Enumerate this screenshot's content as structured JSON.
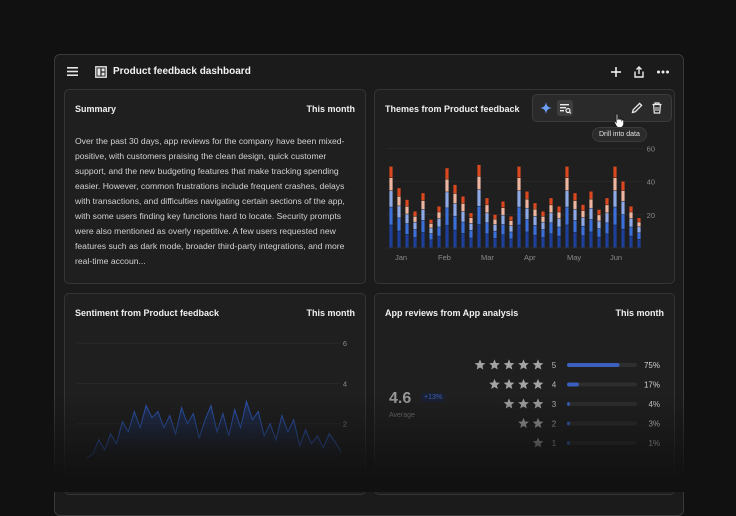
{
  "header": {
    "title": "Product feedback dashboard",
    "icons": [
      "menu-icon",
      "dashboard-icon",
      "add-icon",
      "share-icon",
      "more-icon"
    ]
  },
  "summary": {
    "title": "Summary",
    "period": "This month",
    "text": "Over the past 30 days, app reviews for the company have been mixed-positive, with customers praising the clean design, quick customer support, and the new budgeting features that make tracking spending easier. However, common frustrations include frequent crashes, delays with transactions, and difficulties navigating certain sections of the app, with some users finding key functions hard to locate. Security prompts were also mentioned as overly repetitive. A few users requested new features such as dark mode, broader third-party integrations, and more real-time accoun..."
  },
  "themes": {
    "title": "Themes from Product feedback",
    "toolbar_icons": [
      "sparkle-icon",
      "drill-into-data-icon",
      "edit-icon",
      "delete-icon"
    ],
    "tooltip": "Drill into data"
  },
  "sentiment": {
    "title": "Sentiment from Product feedback",
    "period": "This month"
  },
  "reviews": {
    "title": "App reviews from App analysis",
    "period": "This month",
    "average": "4.6",
    "average_label": "Average",
    "change": "+13%",
    "rows": [
      {
        "stars": 5,
        "label": "5",
        "percent": "75%",
        "fraction": 0.75
      },
      {
        "stars": 4,
        "label": "4",
        "percent": "17%",
        "fraction": 0.17
      },
      {
        "stars": 3,
        "label": "3",
        "percent": "4%",
        "fraction": 0.04
      },
      {
        "stars": 2,
        "label": "2",
        "percent": "3%",
        "fraction": 0.03
      },
      {
        "stars": 1,
        "label": "1",
        "percent": "1%",
        "fraction": 0.01
      }
    ]
  },
  "colors": {
    "accent_blue": "#3d6fd8",
    "dark_blue": "#1d3f9a",
    "light_blue": "#8ea9e6",
    "orange": "#d9481e",
    "peach": "#ecb6a0",
    "sparkle": "#6d9ef7"
  },
  "chart_data": [
    {
      "type": "bar",
      "title": "Themes from Product feedback",
      "stacked": true,
      "x_tick_labels": [
        "Jan",
        "Feb",
        "Mar",
        "Apr",
        "May",
        "Jun"
      ],
      "y_tick_labels": [
        "60",
        "40",
        "20"
      ],
      "ylim": [
        0,
        65
      ],
      "grid": true,
      "totals": [
        49,
        36,
        29,
        22,
        33,
        17,
        25,
        48,
        38,
        31,
        21,
        50,
        30,
        20,
        28,
        19,
        49,
        34,
        27,
        22,
        30,
        25,
        49,
        33,
        26,
        34,
        23,
        30,
        49,
        40,
        25,
        18
      ]
    },
    {
      "type": "area",
      "title": "Sentiment from Product feedback",
      "y_tick_labels": [
        "6",
        "4",
        "2"
      ],
      "ylim": [
        0,
        6.6
      ],
      "grid": true,
      "values": [
        0.3,
        0.5,
        1.2,
        0.7,
        1.5,
        1.0,
        2.1,
        1.6,
        2.6,
        1.8,
        2.9,
        2.3,
        2.6,
        1.8,
        2.4,
        1.5,
        2.8,
        2.0,
        2.5,
        1.3,
        2.2,
        2.9,
        1.6,
        2.5,
        1.4,
        2.7,
        1.8,
        3.1,
        2.2,
        2.6,
        1.4,
        2.0,
        1.2,
        2.4,
        1.6,
        2.2,
        0.9,
        1.7,
        1.0,
        1.4,
        0.8,
        1.5,
        1.1,
        0.6
      ]
    }
  ]
}
